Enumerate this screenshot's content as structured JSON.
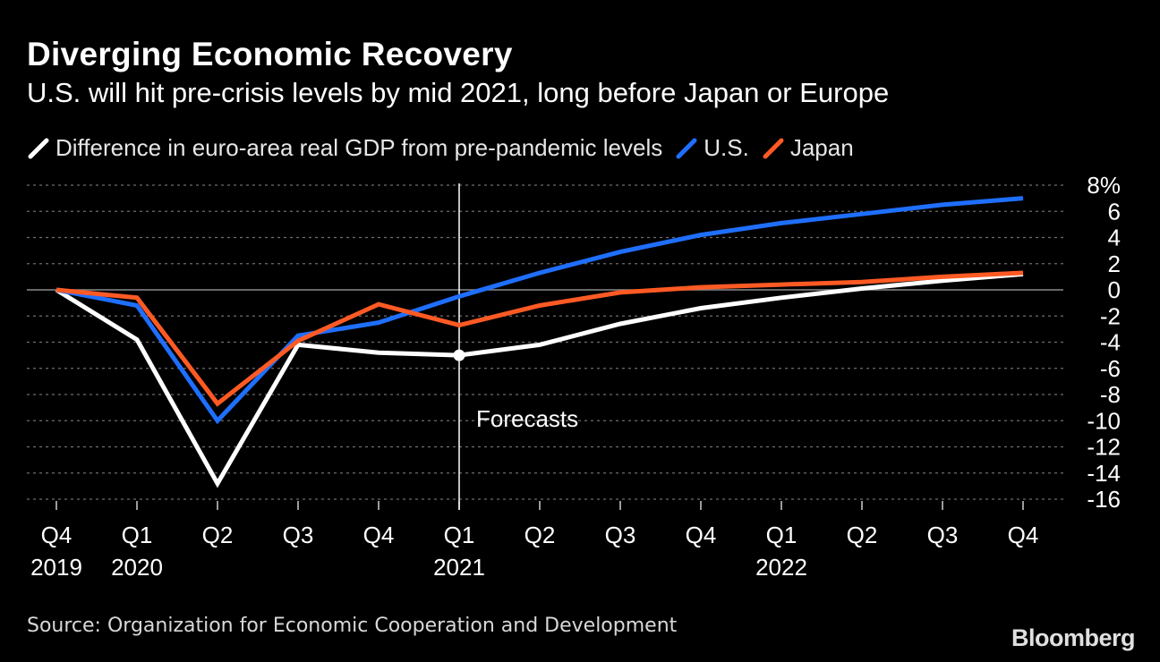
{
  "brand": "Bloomberg",
  "source": "Source: Organization for Economic Cooperation and Development",
  "chart_data": {
    "type": "line",
    "title": "Diverging Economic Recovery",
    "subtitle": "U.S. will hit pre-crisis levels by mid 2021, long before Japan or Europe",
    "x": [
      "Q4 2019",
      "Q1 2020",
      "Q2 2020",
      "Q3 2020",
      "Q4 2020",
      "Q1 2021",
      "Q2 2021",
      "Q3 2021",
      "Q4 2021",
      "Q1 2022",
      "Q2 2022",
      "Q3 2022",
      "Q4 2022"
    ],
    "x_tick_labels": [
      {
        "q": "Q4",
        "year": "2019"
      },
      {
        "q": "Q1",
        "year": "2020"
      },
      {
        "q": "Q2",
        "year": ""
      },
      {
        "q": "Q3",
        "year": ""
      },
      {
        "q": "Q4",
        "year": ""
      },
      {
        "q": "Q1",
        "year": "2021"
      },
      {
        "q": "Q2",
        "year": ""
      },
      {
        "q": "Q3",
        "year": ""
      },
      {
        "q": "Q4",
        "year": ""
      },
      {
        "q": "Q1",
        "year": "2022"
      },
      {
        "q": "Q2",
        "year": ""
      },
      {
        "q": "Q3",
        "year": ""
      },
      {
        "q": "Q4",
        "year": ""
      }
    ],
    "series": [
      {
        "name": "Difference in euro-area real GDP from pre-pandemic levels",
        "color": "#ffffff",
        "values": [
          0,
          -3.8,
          -14.8,
          -4.2,
          -4.8,
          -5.0,
          -4.2,
          -2.6,
          -1.4,
          -0.6,
          0.1,
          0.7,
          1.2
        ]
      },
      {
        "name": "U.S.",
        "color": "#1f6fff",
        "values": [
          0,
          -1.2,
          -10.0,
          -3.5,
          -2.5,
          -0.5,
          1.3,
          2.9,
          4.2,
          5.1,
          5.8,
          6.5,
          7.0
        ]
      },
      {
        "name": "Japan",
        "color": "#ff5a24",
        "values": [
          0,
          -0.6,
          -8.7,
          -3.9,
          -1.1,
          -2.7,
          -1.2,
          -0.2,
          0.2,
          0.4,
          0.6,
          1.0,
          1.3
        ]
      }
    ],
    "ylim": [
      -16,
      8
    ],
    "yticks": [
      8,
      6,
      4,
      2,
      0,
      -2,
      -4,
      -6,
      -8,
      -10,
      -12,
      -14,
      -16
    ],
    "ytick_labels": [
      "8%",
      "6",
      "4",
      "2",
      "0",
      "-2",
      "-4",
      "-6",
      "-8",
      "-10",
      "-12",
      "-14",
      "-16"
    ],
    "forecast_label": "Forecasts",
    "forecast_start_index": 5,
    "grid": true,
    "legend": "top-left"
  }
}
